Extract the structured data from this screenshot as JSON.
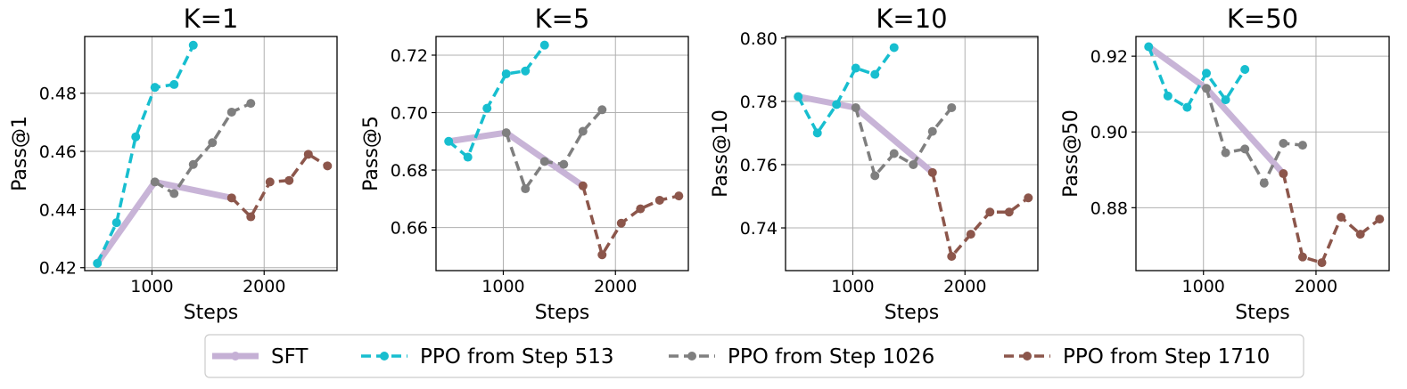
{
  "legend": [
    {
      "label": "SFT",
      "color": "#c5b0d5",
      "style": "solid"
    },
    {
      "label": "PPO from Step 513",
      "color": "#17becf",
      "style": "dashed"
    },
    {
      "label": "PPO from Step 1026",
      "color": "#7f7f7f",
      "style": "dashed"
    },
    {
      "label": "PPO from Step 1710",
      "color": "#8c564b",
      "style": "dashed"
    }
  ],
  "chart_data": [
    {
      "type": "line",
      "title": "K=1",
      "xlabel": "Steps",
      "ylabel": "Pass@1",
      "xlim": [
        400,
        2650
      ],
      "ylim": [
        0.419,
        0.4995
      ],
      "xticks": [
        1000,
        2000
      ],
      "yticks": [
        0.42,
        0.44,
        0.46,
        0.48
      ],
      "ytick_labels": [
        "0.42",
        "0.44",
        "0.46",
        "0.48"
      ],
      "series": [
        {
          "name": "SFT",
          "x": [
            513,
            1026,
            1710
          ],
          "y": [
            0.4215,
            0.4495,
            0.444
          ]
        },
        {
          "name": "PPO from Step 513",
          "x": [
            513,
            684,
            855,
            1026,
            1197,
            1368
          ],
          "y": [
            0.4215,
            0.4355,
            0.465,
            0.482,
            0.483,
            0.4965
          ]
        },
        {
          "name": "PPO from Step 1026",
          "x": [
            1026,
            1197,
            1368,
            1539,
            1710,
            1881
          ],
          "y": [
            0.4495,
            0.4455,
            0.4555,
            0.463,
            0.4735,
            0.4765
          ]
        },
        {
          "name": "PPO from Step 1710",
          "x": [
            1710,
            1881,
            2052,
            2223,
            2394,
            2565
          ],
          "y": [
            0.444,
            0.4375,
            0.4495,
            0.45,
            0.459,
            0.455
          ]
        }
      ]
    },
    {
      "type": "line",
      "title": "K=5",
      "xlabel": "Steps",
      "ylabel": "Pass@5",
      "xlim": [
        400,
        2650
      ],
      "ylim": [
        0.645,
        0.7265
      ],
      "xticks": [
        1000,
        2000
      ],
      "yticks": [
        0.66,
        0.68,
        0.7,
        0.72
      ],
      "ytick_labels": [
        "0.66",
        "0.68",
        "0.70",
        "0.72"
      ],
      "series": [
        {
          "name": "SFT",
          "x": [
            513,
            1026,
            1710
          ],
          "y": [
            0.69,
            0.693,
            0.6745
          ]
        },
        {
          "name": "PPO from Step 513",
          "x": [
            513,
            684,
            855,
            1026,
            1197,
            1368
          ],
          "y": [
            0.69,
            0.6845,
            0.7015,
            0.7135,
            0.7145,
            0.7235
          ]
        },
        {
          "name": "PPO from Step 1026",
          "x": [
            1026,
            1197,
            1368,
            1539,
            1710,
            1881
          ],
          "y": [
            0.693,
            0.6735,
            0.683,
            0.682,
            0.6935,
            0.701
          ]
        },
        {
          "name": "PPO from Step 1710",
          "x": [
            1710,
            1881,
            2052,
            2223,
            2394,
            2565
          ],
          "y": [
            0.6745,
            0.6505,
            0.6615,
            0.6665,
            0.6695,
            0.671
          ]
        }
      ]
    },
    {
      "type": "line",
      "title": "K=10",
      "xlabel": "Steps",
      "ylabel": "Pass@10",
      "xlim": [
        400,
        2650
      ],
      "ylim": [
        0.7265,
        0.8005
      ],
      "xticks": [
        1000,
        2000
      ],
      "yticks": [
        0.74,
        0.76,
        0.78,
        0.8
      ],
      "ytick_labels": [
        "0.74",
        "0.76",
        "0.78",
        "0.80"
      ],
      "series": [
        {
          "name": "SFT",
          "x": [
            513,
            1026,
            1710
          ],
          "y": [
            0.7815,
            0.778,
            0.7575
          ]
        },
        {
          "name": "PPO from Step 513",
          "x": [
            513,
            684,
            855,
            1026,
            1197,
            1368
          ],
          "y": [
            0.7815,
            0.77,
            0.779,
            0.7905,
            0.7885,
            0.797
          ]
        },
        {
          "name": "PPO from Step 1026",
          "x": [
            1026,
            1197,
            1368,
            1539,
            1710,
            1881
          ],
          "y": [
            0.778,
            0.7565,
            0.7635,
            0.76,
            0.7705,
            0.778
          ]
        },
        {
          "name": "PPO from Step 1710",
          "x": [
            1710,
            1881,
            2052,
            2223,
            2394,
            2565
          ],
          "y": [
            0.7575,
            0.731,
            0.738,
            0.745,
            0.745,
            0.7495
          ]
        }
      ]
    },
    {
      "type": "line",
      "title": "K=50",
      "xlabel": "Steps",
      "ylabel": "Pass@50",
      "xlim": [
        400,
        2650
      ],
      "ylim": [
        0.8634,
        0.9252
      ],
      "xticks": [
        1000,
        2000
      ],
      "yticks": [
        0.88,
        0.9,
        0.92
      ],
      "ytick_labels": [
        "0.88",
        "0.90",
        "0.92"
      ],
      "series": [
        {
          "name": "SFT",
          "x": [
            513,
            1026,
            1710
          ],
          "y": [
            0.9225,
            0.9115,
            0.889
          ]
        },
        {
          "name": "PPO from Step 513",
          "x": [
            513,
            684,
            855,
            1026,
            1197,
            1368
          ],
          "y": [
            0.9225,
            0.9095,
            0.9065,
            0.9155,
            0.9085,
            0.9165
          ]
        },
        {
          "name": "PPO from Step 1026",
          "x": [
            1026,
            1197,
            1368,
            1539,
            1710,
            1881
          ],
          "y": [
            0.9115,
            0.8945,
            0.8955,
            0.8865,
            0.897,
            0.8965
          ]
        },
        {
          "name": "PPO from Step 1710",
          "x": [
            1710,
            1881,
            2052,
            2223,
            2394,
            2565
          ],
          "y": [
            0.889,
            0.867,
            0.8655,
            0.8775,
            0.873,
            0.877
          ]
        }
      ]
    }
  ]
}
